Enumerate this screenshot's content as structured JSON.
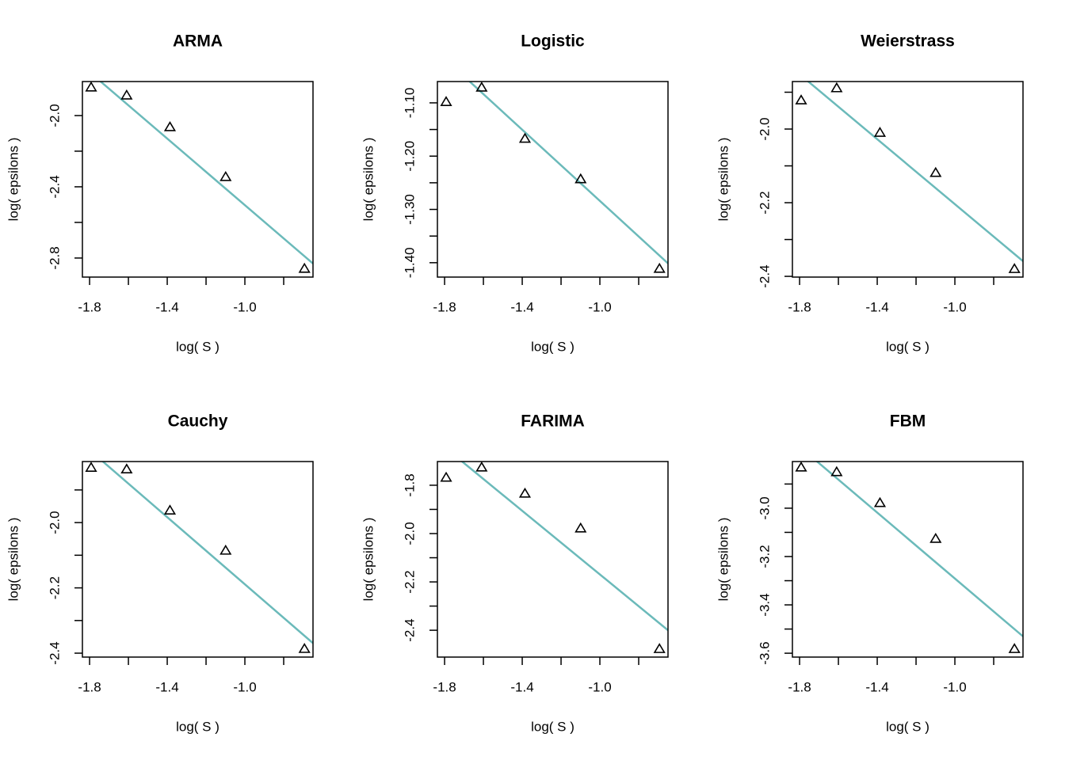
{
  "chart_data": [
    {
      "type": "scatter",
      "title": "ARMA",
      "xlabel": "log( S )",
      "ylabel": "log( epsilons )",
      "x": [
        -1.792,
        -1.609,
        -1.386,
        -1.099,
        -0.693
      ],
      "values": [
        -1.844,
        -1.889,
        -2.067,
        -2.347,
        -2.862
      ],
      "fit": {
        "intercept": -3.437,
        "slope": -0.934,
        "color": "#6bbaba"
      },
      "xlim": [
        -1.837,
        -0.649
      ],
      "ylim": [
        -2.907,
        -1.809
      ],
      "xticks": [
        -1.8,
        -1.4,
        {
          "value": -1,
          "label": "-1.0"
        }
      ],
      "xticks_minor": [
        -1.6,
        -1.2,
        -0.8
      ],
      "yticks": [
        {
          "value": -2,
          "label": "-2.0"
        },
        -2.4,
        -2.8
      ],
      "yticks_minor": [
        -2.2,
        -2.6
      ]
    },
    {
      "type": "scatter",
      "title": "Logistic",
      "xlabel": "log( S )",
      "ylabel": "log( epsilons )",
      "x": [
        -1.792,
        -1.609,
        -1.386,
        -1.099,
        -0.693
      ],
      "values": [
        -1.099,
        -1.072,
        -1.168,
        -1.244,
        -1.412
      ],
      "fit": {
        "intercept": -1.618,
        "slope": -0.334,
        "color": "#6bbaba"
      },
      "xlim": [
        -1.837,
        -0.649
      ],
      "ylim": [
        -1.427,
        -1.06
      ],
      "xticks": [
        -1.8,
        -1.4,
        {
          "value": -1,
          "label": "-1.0"
        }
      ],
      "xticks_minor": [
        -1.6,
        -1.2,
        -0.8
      ],
      "yticks": [
        {
          "value": -1.1,
          "label": "-1.10"
        },
        {
          "value": -1.2,
          "label": "-1.20"
        },
        {
          "value": -1.3,
          "label": "-1.30"
        },
        {
          "value": -1.4,
          "label": "-1.40"
        }
      ],
      "yticks_minor": [
        -1.15,
        -1.25,
        -1.35
      ]
    },
    {
      "type": "scatter",
      "title": "Weierstrass",
      "xlabel": "log( S )",
      "ylabel": "log( epsilons )",
      "x": [
        -1.792,
        -1.609,
        -1.386,
        -1.099,
        -0.693
      ],
      "values": [
        -1.923,
        -1.89,
        -2.011,
        -2.12,
        -2.381
      ],
      "fit": {
        "intercept": -2.645,
        "slope": -0.441,
        "color": "#6bbaba"
      },
      "xlim": [
        -1.837,
        -0.649
      ],
      "ylim": [
        -2.402,
        -1.871
      ],
      "xticks": [
        -1.8,
        -1.4,
        {
          "value": -1,
          "label": "-1.0"
        }
      ],
      "xticks_minor": [
        -1.6,
        -1.2,
        -0.8
      ],
      "yticks": [
        {
          "value": -2,
          "label": "-2.0"
        },
        -2.2,
        -2.4
      ],
      "yticks_minor": [
        -1.9,
        -2.1,
        -2.3
      ]
    },
    {
      "type": "scatter",
      "title": "Cauchy",
      "xlabel": "log( S )",
      "ylabel": "log( epsilons )",
      "x": [
        -1.792,
        -1.609,
        -1.386,
        -1.099,
        -0.693
      ],
      "values": [
        -1.833,
        -1.838,
        -1.964,
        -2.087,
        -2.388
      ],
      "fit": {
        "intercept": -2.703,
        "slope": -0.514,
        "color": "#6bbaba"
      },
      "xlim": [
        -1.837,
        -0.649
      ],
      "ylim": [
        -2.412,
        -1.813
      ],
      "xticks": [
        -1.8,
        -1.4,
        {
          "value": -1,
          "label": "-1.0"
        }
      ],
      "xticks_minor": [
        -1.6,
        -1.2,
        -0.8
      ],
      "yticks": [
        {
          "value": -2,
          "label": "-2.0"
        },
        -2.2,
        -2.4
      ],
      "yticks_minor": [
        -1.9,
        -2.1,
        -2.3
      ]
    },
    {
      "type": "scatter",
      "title": "FARIMA",
      "xlabel": "log( S )",
      "ylabel": "log( epsilons )",
      "x": [
        -1.792,
        -1.609,
        -1.386,
        -1.099,
        -0.693
      ],
      "values": [
        -1.77,
        -1.728,
        -1.836,
        -1.98,
        -2.479
      ],
      "fit": {
        "intercept": -2.827,
        "slope": -0.658,
        "color": "#6bbaba"
      },
      "xlim": [
        -1.837,
        -0.649
      ],
      "ylim": [
        -2.511,
        -1.702
      ],
      "xticks": [
        -1.8,
        -1.4,
        {
          "value": -1,
          "label": "-1.0"
        }
      ],
      "xticks_minor": [
        -1.6,
        -1.2,
        -0.8
      ],
      "yticks": [
        -1.8,
        {
          "value": -2,
          "label": "-2.0"
        },
        -2.2,
        -2.4
      ],
      "yticks_minor": [
        -1.9,
        -2.1,
        -2.3
      ]
    },
    {
      "type": "scatter",
      "title": "FBM",
      "xlabel": "log( S )",
      "ylabel": "log( epsilons )",
      "x": [
        -1.792,
        -1.609,
        -1.386,
        -1.099,
        -0.693
      ],
      "values": [
        -2.833,
        -2.852,
        -2.98,
        -3.128,
        -3.584
      ],
      "fit": {
        "intercept": -3.973,
        "slope": -0.682,
        "color": "#6bbaba"
      },
      "xlim": [
        -1.837,
        -0.649
      ],
      "ylim": [
        -3.616,
        -2.807
      ],
      "xticks": [
        -1.8,
        -1.4,
        {
          "value": -1,
          "label": "-1.0"
        }
      ],
      "xticks_minor": [
        -1.6,
        -1.2,
        -0.8
      ],
      "yticks": [
        {
          "value": -3,
          "label": "-3.0"
        },
        -3.2,
        -3.4,
        -3.6
      ],
      "yticks_minor": [
        -2.9,
        -3.1,
        -3.3,
        -3.5
      ]
    }
  ]
}
